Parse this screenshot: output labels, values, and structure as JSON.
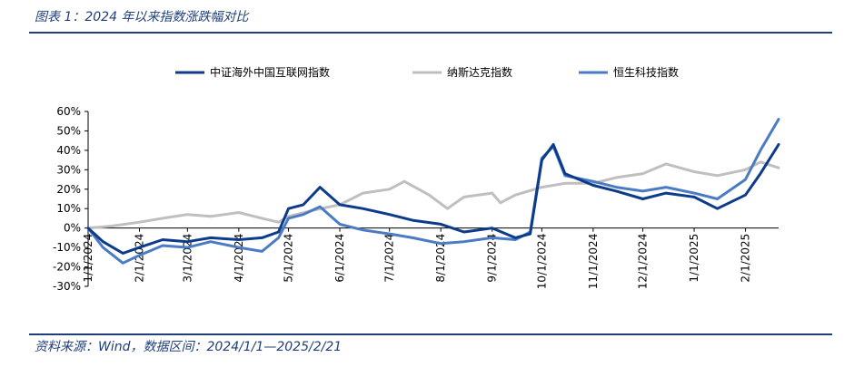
{
  "figure": {
    "title": "图表 1：2024 年以来指数涨跌幅对比",
    "source": "资料来源：Wind，数据区间：2024/1/1—2025/2/21"
  },
  "chart_data": {
    "type": "line",
    "ylim": [
      -0.3,
      0.6
    ],
    "yticks": [
      -0.3,
      -0.2,
      -0.1,
      0,
      0.1,
      0.2,
      0.3,
      0.4,
      0.5,
      0.6
    ],
    "ytick_labels": [
      "-30%",
      "-20%",
      "-10%",
      "0%",
      "10%",
      "20%",
      "30%",
      "40%",
      "50%",
      "60%"
    ],
    "xlim": [
      "2024-01-01",
      "2025-02-21"
    ],
    "xticks": [
      "2024-01-01",
      "2024-02-01",
      "2024-03-01",
      "2024-04-01",
      "2024-05-01",
      "2024-06-01",
      "2024-07-01",
      "2024-08-01",
      "2024-09-01",
      "2024-10-01",
      "2024-11-01",
      "2024-12-01",
      "2025-01-01",
      "2025-02-01"
    ],
    "xtick_labels": [
      "1/1/2024",
      "2/1/2024",
      "3/1/2024",
      "4/1/2024",
      "5/1/2024",
      "6/1/2024",
      "7/1/2024",
      "8/1/2024",
      "9/1/2024",
      "10/1/2024",
      "11/1/2024",
      "12/1/2024",
      "1/1/2025",
      "2/1/2025"
    ],
    "legend_position": "top",
    "grid": false,
    "series": [
      {
        "name": "中证海外中国互联网指数",
        "color": "#0d3b8c",
        "x": [
          "2024-01-01",
          "2024-01-10",
          "2024-01-22",
          "2024-02-01",
          "2024-02-15",
          "2024-03-01",
          "2024-03-15",
          "2024-04-01",
          "2024-04-15",
          "2024-04-25",
          "2024-05-01",
          "2024-05-10",
          "2024-05-20",
          "2024-06-01",
          "2024-06-15",
          "2024-07-01",
          "2024-07-15",
          "2024-08-01",
          "2024-08-15",
          "2024-09-01",
          "2024-09-15",
          "2024-09-24",
          "2024-10-01",
          "2024-10-08",
          "2024-10-15",
          "2024-11-01",
          "2024-11-15",
          "2024-12-01",
          "2024-12-15",
          "2025-01-01",
          "2025-01-15",
          "2025-02-01",
          "2025-02-10",
          "2025-02-21"
        ],
        "values": [
          0.0,
          -0.07,
          -0.13,
          -0.1,
          -0.06,
          -0.07,
          -0.05,
          -0.06,
          -0.05,
          -0.02,
          0.1,
          0.12,
          0.21,
          0.12,
          0.1,
          0.07,
          0.04,
          0.02,
          -0.02,
          0.0,
          -0.05,
          -0.03,
          0.35,
          0.43,
          0.28,
          0.22,
          0.19,
          0.15,
          0.18,
          0.16,
          0.1,
          0.17,
          0.28,
          0.43
        ]
      },
      {
        "name": "纳斯达克指数",
        "color": "#bfbfbf",
        "x": [
          "2024-01-01",
          "2024-01-15",
          "2024-02-01",
          "2024-02-15",
          "2024-03-01",
          "2024-03-15",
          "2024-04-01",
          "2024-04-15",
          "2024-04-25",
          "2024-05-01",
          "2024-05-15",
          "2024-06-01",
          "2024-06-15",
          "2024-07-01",
          "2024-07-10",
          "2024-07-25",
          "2024-08-05",
          "2024-08-15",
          "2024-09-01",
          "2024-09-06",
          "2024-09-15",
          "2024-10-01",
          "2024-10-15",
          "2024-11-01",
          "2024-11-15",
          "2024-12-01",
          "2024-12-15",
          "2025-01-01",
          "2025-01-15",
          "2025-02-01",
          "2025-02-10",
          "2025-02-21"
        ],
        "values": [
          0.0,
          0.01,
          0.03,
          0.05,
          0.07,
          0.06,
          0.08,
          0.05,
          0.03,
          0.06,
          0.09,
          0.12,
          0.18,
          0.2,
          0.24,
          0.17,
          0.1,
          0.16,
          0.18,
          0.13,
          0.17,
          0.21,
          0.23,
          0.23,
          0.26,
          0.28,
          0.33,
          0.29,
          0.27,
          0.3,
          0.34,
          0.31
        ]
      },
      {
        "name": "恒生科技指数",
        "color": "#4a7bc4",
        "x": [
          "2024-01-01",
          "2024-01-10",
          "2024-01-22",
          "2024-02-01",
          "2024-02-15",
          "2024-03-01",
          "2024-03-15",
          "2024-04-01",
          "2024-04-15",
          "2024-04-25",
          "2024-05-01",
          "2024-05-10",
          "2024-05-20",
          "2024-06-01",
          "2024-06-15",
          "2024-07-01",
          "2024-07-15",
          "2024-08-01",
          "2024-08-15",
          "2024-09-01",
          "2024-09-15",
          "2024-09-24",
          "2024-10-01",
          "2024-10-08",
          "2024-10-15",
          "2024-11-01",
          "2024-11-15",
          "2024-12-01",
          "2024-12-15",
          "2025-01-01",
          "2025-01-15",
          "2025-02-01",
          "2025-02-10",
          "2025-02-21"
        ],
        "values": [
          0.0,
          -0.1,
          -0.18,
          -0.14,
          -0.09,
          -0.1,
          -0.07,
          -0.1,
          -0.12,
          -0.05,
          0.05,
          0.07,
          0.11,
          0.02,
          -0.01,
          -0.03,
          -0.05,
          -0.08,
          -0.07,
          -0.05,
          -0.06,
          -0.02,
          0.36,
          0.42,
          0.27,
          0.24,
          0.21,
          0.19,
          0.21,
          0.18,
          0.15,
          0.25,
          0.4,
          0.56
        ]
      }
    ]
  }
}
